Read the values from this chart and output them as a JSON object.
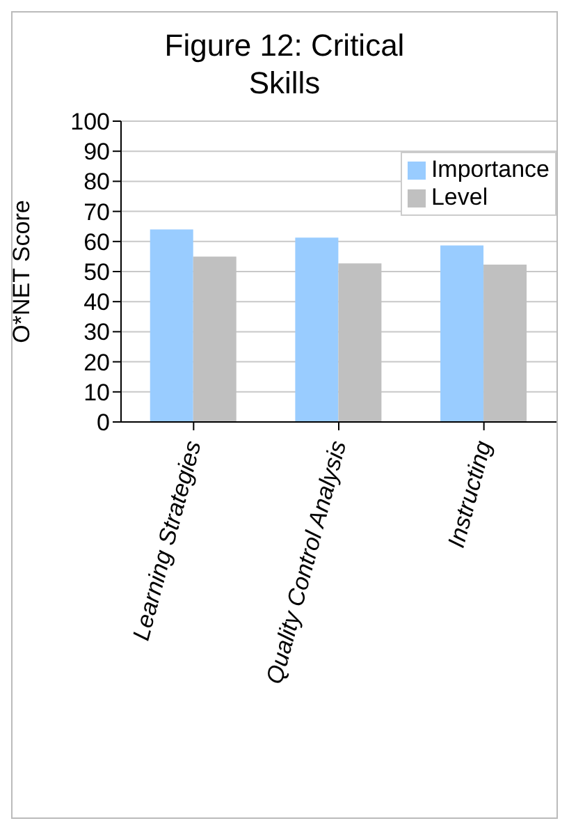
{
  "chart_data": {
    "type": "bar",
    "title": "Figure 12: Critical Skills",
    "ylabel": "O*NET Score",
    "categories": [
      "Learning Strategies",
      "Quality Control Analysis",
      "Instructing"
    ],
    "series": [
      {
        "name": "Importance",
        "color": "#99ccff",
        "values": [
          64,
          61.3,
          58.7
        ]
      },
      {
        "name": "Level",
        "color": "#c0c0c0",
        "values": [
          55,
          52.7,
          52.3
        ]
      }
    ],
    "ylim": [
      0,
      100
    ],
    "yticks": [
      0,
      10,
      20,
      30,
      40,
      50,
      60,
      70,
      80,
      90,
      100
    ],
    "grid": "y",
    "legend": "top right"
  }
}
